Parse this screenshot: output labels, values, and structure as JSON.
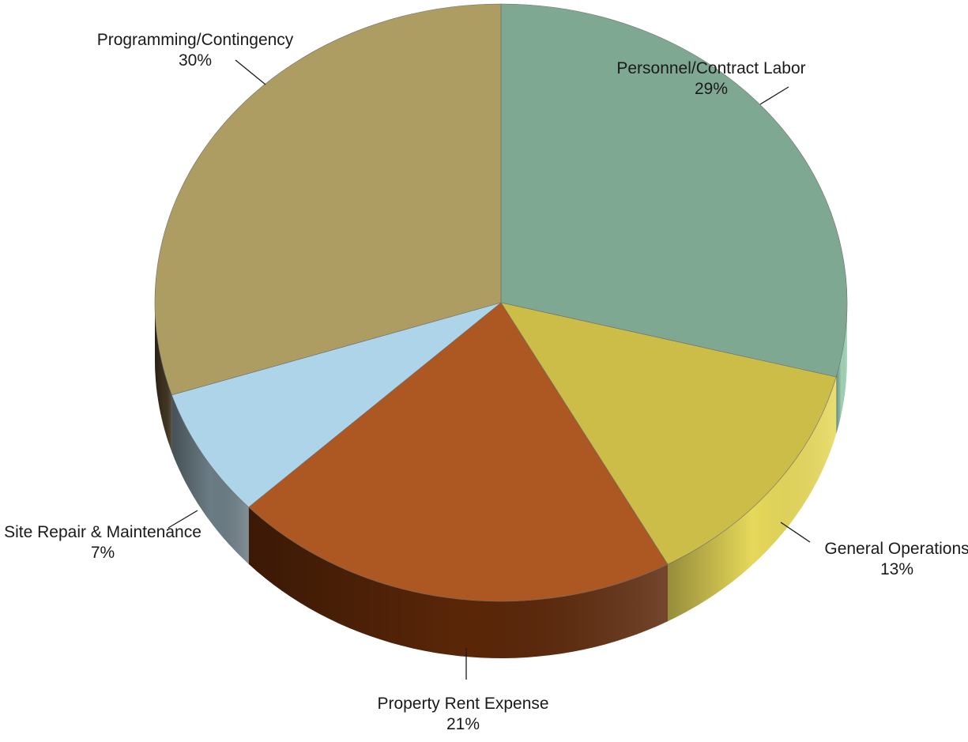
{
  "chart_data": {
    "type": "pie",
    "title": "",
    "categories": [
      "Personnel/Contract Labor",
      "General Operations",
      "Property Rent Expense",
      "Site Repair & Maintenance",
      "Programming/Contingency"
    ],
    "values": [
      29,
      13,
      21,
      7,
      30
    ],
    "value_labels": [
      "29%",
      "13%",
      "21%",
      "7%",
      "30%"
    ],
    "colors": [
      "#7fa892",
      "#cbbd48",
      "#ad5723",
      "#add4e8",
      "#ad9d63"
    ],
    "side_colors": [
      "#9fd2b6",
      "#e6d85a",
      "#5a2608",
      "#6b7c84",
      "#3d3220"
    ],
    "legend": "none",
    "style": "3d"
  }
}
